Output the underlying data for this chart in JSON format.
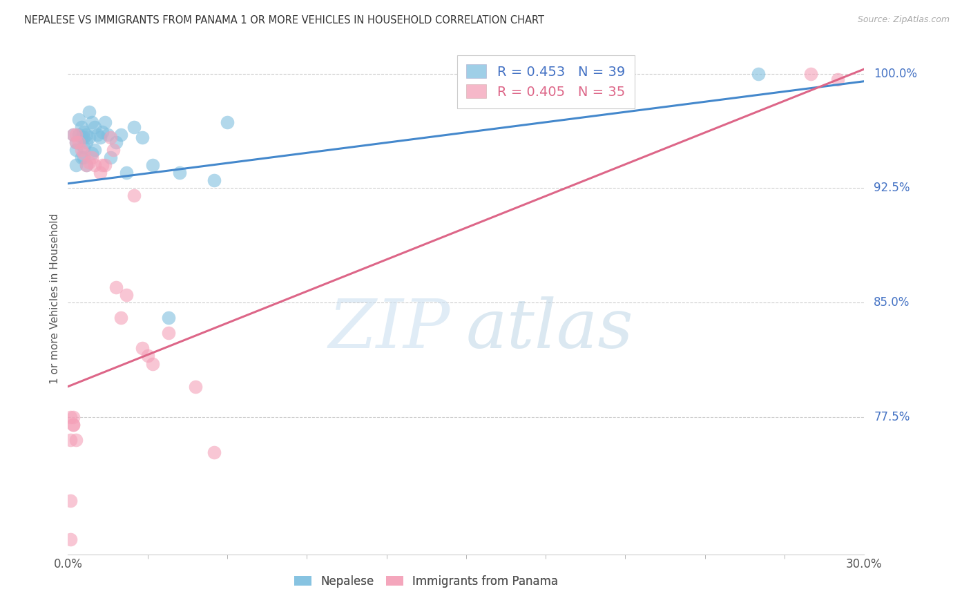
{
  "title": "NEPALESE VS IMMIGRANTS FROM PANAMA 1 OR MORE VEHICLES IN HOUSEHOLD CORRELATION CHART",
  "source": "Source: ZipAtlas.com",
  "ylabel": "1 or more Vehicles in Household",
  "ytick_labels": [
    "100.0%",
    "92.5%",
    "85.0%",
    "77.5%"
  ],
  "ytick_values": [
    1.0,
    0.925,
    0.85,
    0.775
  ],
  "xlim": [
    0.0,
    0.3
  ],
  "ylim": [
    0.685,
    1.02
  ],
  "legend_blue_r": "R = 0.453",
  "legend_blue_n": "N = 39",
  "legend_pink_r": "R = 0.405",
  "legend_pink_n": "N = 35",
  "blue_color": "#7fbfdf",
  "pink_color": "#f4a0b8",
  "blue_line_color": "#4488cc",
  "pink_line_color": "#dd6688",
  "blue_label": "Nepalese",
  "pink_label": "Immigrants from Panama",
  "blue_scatter_x": [
    0.002,
    0.003,
    0.003,
    0.003,
    0.004,
    0.004,
    0.005,
    0.005,
    0.005,
    0.006,
    0.006,
    0.006,
    0.006,
    0.007,
    0.007,
    0.007,
    0.008,
    0.008,
    0.009,
    0.009,
    0.01,
    0.01,
    0.011,
    0.012,
    0.013,
    0.014,
    0.015,
    0.016,
    0.018,
    0.02,
    0.022,
    0.025,
    0.028,
    0.032,
    0.038,
    0.042,
    0.055,
    0.06,
    0.26
  ],
  "blue_scatter_y": [
    0.96,
    0.955,
    0.95,
    0.94,
    0.97,
    0.96,
    0.965,
    0.958,
    0.945,
    0.962,
    0.958,
    0.952,
    0.945,
    0.96,
    0.955,
    0.94,
    0.975,
    0.958,
    0.968,
    0.948,
    0.965,
    0.95,
    0.96,
    0.958,
    0.962,
    0.968,
    0.96,
    0.945,
    0.955,
    0.96,
    0.935,
    0.965,
    0.958,
    0.94,
    0.84,
    0.935,
    0.93,
    0.968,
    1.0
  ],
  "pink_scatter_x": [
    0.001,
    0.001,
    0.001,
    0.002,
    0.002,
    0.003,
    0.003,
    0.004,
    0.005,
    0.006,
    0.007,
    0.008,
    0.009,
    0.01,
    0.012,
    0.013,
    0.014,
    0.016,
    0.017,
    0.018,
    0.02,
    0.022,
    0.025,
    0.028,
    0.03,
    0.032,
    0.038,
    0.048,
    0.055,
    0.002,
    0.001,
    0.002,
    0.003,
    0.28,
    0.29
  ],
  "pink_scatter_y": [
    0.775,
    0.76,
    0.72,
    0.775,
    0.77,
    0.96,
    0.955,
    0.955,
    0.95,
    0.948,
    0.94,
    0.942,
    0.945,
    0.94,
    0.935,
    0.94,
    0.94,
    0.958,
    0.95,
    0.86,
    0.84,
    0.855,
    0.92,
    0.82,
    0.815,
    0.81,
    0.83,
    0.795,
    0.752,
    0.96,
    0.695,
    0.77,
    0.76,
    1.0,
    0.996
  ],
  "blue_trendline_x": [
    0.0,
    0.3
  ],
  "blue_trendline_y": [
    0.928,
    0.995
  ],
  "pink_trendline_x": [
    0.0,
    0.3
  ],
  "pink_trendline_y": [
    0.795,
    1.003
  ]
}
